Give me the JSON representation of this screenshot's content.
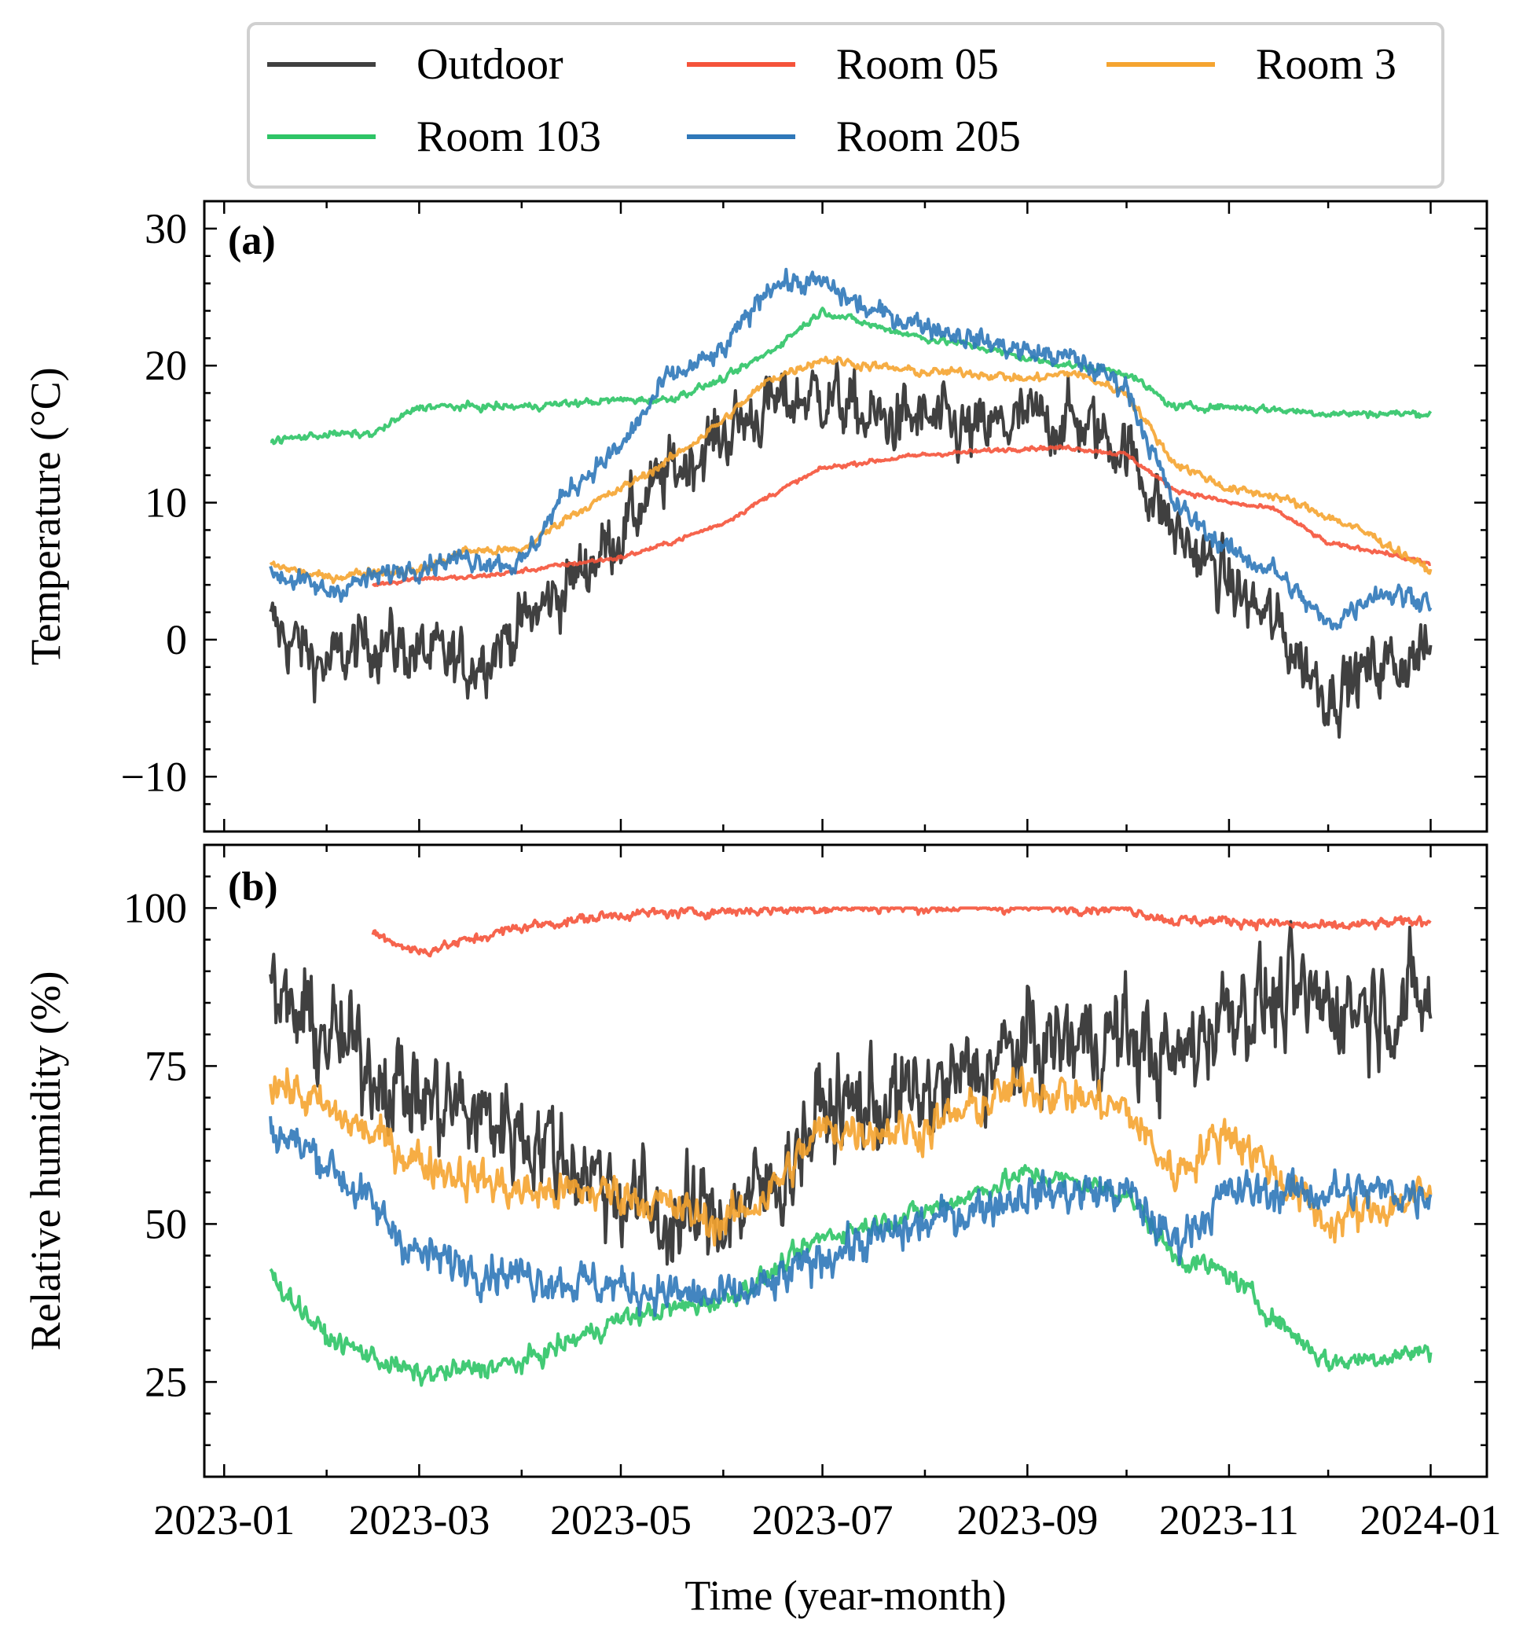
{
  "chart_data": {
    "type": "line",
    "xlabel": "Time (year-month)",
    "x_ticks": [
      "2023-01",
      "2023-03",
      "2023-05",
      "2023-07",
      "2023-09",
      "2023-11",
      "2024-01"
    ],
    "xlim": [
      "2022-12-26",
      "2024-01-18"
    ],
    "legend": {
      "placement": "top-center",
      "columns": 3,
      "entries": [
        {
          "name": "Outdoor",
          "color": "#404040"
        },
        {
          "name": "Room 05",
          "color": "#f5533a"
        },
        {
          "name": "Room 3",
          "color": "#f5a430"
        },
        {
          "name": "Room 103",
          "color": "#2ec466"
        },
        {
          "name": "Room 205",
          "color": "#2f78b9"
        }
      ]
    },
    "panels": [
      {
        "label": "(a)",
        "ylabel": "Temperature (°C)",
        "ylim": [
          -14,
          32
        ],
        "y_ticks": [
          -10,
          0,
          10,
          20,
          30
        ],
        "y_tick_labels": [
          "−10",
          "0",
          "10",
          "20",
          "30"
        ],
        "series": [
          {
            "name": "Outdoor",
            "color": "#404040",
            "noise": 4.5,
            "x": [
              "2023-01-15",
              "2023-02-01",
              "2023-02-15",
              "2023-03-01",
              "2023-03-15",
              "2023-04-01",
              "2023-04-15",
              "2023-05-01",
              "2023-05-15",
              "2023-06-01",
              "2023-06-15",
              "2023-07-01",
              "2023-07-15",
              "2023-08-01",
              "2023-08-15",
              "2023-09-01",
              "2023-09-15",
              "2023-10-01",
              "2023-10-15",
              "2023-11-01",
              "2023-11-15",
              "2023-12-01",
              "2023-12-15",
              "2024-01-01"
            ],
            "y": [
              1,
              -2,
              0,
              -1,
              -2,
              1,
              4,
              8,
              12,
              15,
              17,
              18,
              16,
              16,
              15,
              16,
              16,
              14,
              8,
              4,
              1,
              -4,
              -2,
              -1
            ]
          },
          {
            "name": "Room 05",
            "color": "#f5533a",
            "noise": 0.3,
            "x": [
              "2023-02-15",
              "2023-03-01",
              "2023-03-15",
              "2023-04-01",
              "2023-04-15",
              "2023-05-01",
              "2023-05-15",
              "2023-06-01",
              "2023-06-15",
              "2023-07-01",
              "2023-07-15",
              "2023-08-01",
              "2023-08-15",
              "2023-09-01",
              "2023-09-15",
              "2023-10-01",
              "2023-10-15",
              "2023-11-01",
              "2023-11-15",
              "2023-12-01",
              "2023-12-15",
              "2024-01-01"
            ],
            "y": [
              4,
              4.5,
              4.5,
              5,
              5.5,
              6,
              7,
              8.5,
              10.5,
              12.5,
              13,
              13.5,
              13.7,
              14,
              14,
              13.5,
              11,
              10,
              9.5,
              7,
              6.5,
              5.5
            ]
          },
          {
            "name": "Room 3",
            "color": "#f5a430",
            "noise": 0.6,
            "x": [
              "2023-01-15",
              "2023-02-01",
              "2023-02-15",
              "2023-03-01",
              "2023-03-15",
              "2023-04-01",
              "2023-04-15",
              "2023-05-01",
              "2023-05-15",
              "2023-06-01",
              "2023-06-15",
              "2023-07-01",
              "2023-07-15",
              "2023-08-01",
              "2023-08-15",
              "2023-09-01",
              "2023-09-15",
              "2023-10-01",
              "2023-10-15",
              "2023-11-01",
              "2023-11-15",
              "2023-12-01",
              "2023-12-15",
              "2024-01-01"
            ],
            "y": [
              5.5,
              4.5,
              5,
              5,
              6.5,
              6.5,
              9,
              11,
              13,
              16,
              19,
              20.5,
              20,
              19.5,
              19.5,
              19,
              19.5,
              18,
              13,
              11,
              10.5,
              9,
              7.5,
              5
            ]
          },
          {
            "name": "Room 103",
            "color": "#2ec466",
            "noise": 0.5,
            "x": [
              "2023-01-15",
              "2023-02-01",
              "2023-02-15",
              "2023-03-01",
              "2023-04-01",
              "2023-05-01",
              "2023-05-15",
              "2023-06-01",
              "2023-06-15",
              "2023-07-01",
              "2023-07-15",
              "2023-08-01",
              "2023-08-15",
              "2023-09-01",
              "2023-09-15",
              "2023-10-01",
              "2023-10-15",
              "2023-11-01",
              "2023-11-15",
              "2023-12-01",
              "2023-12-15",
              "2024-01-01"
            ],
            "y": [
              14.5,
              15,
              15,
              17,
              17,
              17.5,
              17.5,
              19,
              21,
              24,
              23,
              22,
              21.5,
              20.5,
              20,
              19.5,
              17,
              17,
              16.8,
              16.5,
              16.5,
              16.5
            ]
          },
          {
            "name": "Room 205",
            "color": "#2f78b9",
            "noise": 1.5,
            "x": [
              "2023-01-15",
              "2023-02-01",
              "2023-02-15",
              "2023-03-01",
              "2023-03-15",
              "2023-04-01",
              "2023-04-15",
              "2023-05-01",
              "2023-05-15",
              "2023-06-01",
              "2023-06-15",
              "2023-07-01",
              "2023-07-15",
              "2023-08-01",
              "2023-08-15",
              "2023-09-01",
              "2023-09-15",
              "2023-10-01",
              "2023-10-15",
              "2023-11-01",
              "2023-11-15",
              "2023-12-01",
              "2023-12-15",
              "2024-01-01"
            ],
            "y": [
              5,
              3.5,
              4.5,
              5.5,
              6,
              5.5,
              11,
              14,
              19,
              21,
              26,
              26,
              24,
              23,
              22,
              21,
              20.5,
              18.5,
              10,
              6.5,
              5,
              1,
              3.5,
              3
            ]
          }
        ]
      },
      {
        "label": "(b)",
        "ylabel": "Relative humidity (%)",
        "ylim": [
          10,
          110
        ],
        "y_ticks": [
          25,
          50,
          75,
          100
        ],
        "y_tick_labels": [
          "25",
          "50",
          "75",
          "100"
        ],
        "series": [
          {
            "name": "Outdoor",
            "color": "#404040",
            "noise": 15,
            "x": [
              "2023-01-15",
              "2023-02-01",
              "2023-03-01",
              "2023-04-01",
              "2023-05-01",
              "2023-05-15",
              "2023-06-01",
              "2023-06-15",
              "2023-07-01",
              "2023-08-01",
              "2023-09-01",
              "2023-10-01",
              "2023-10-15",
              "2023-11-01",
              "2023-12-01",
              "2024-01-01"
            ],
            "y": [
              85,
              80,
              70,
              65,
              55,
              50,
              52,
              55,
              68,
              70,
              78,
              80,
              75,
              85,
              85,
              85
            ]
          },
          {
            "name": "Room 05",
            "color": "#f5533a",
            "noise": 1.5,
            "x": [
              "2023-02-15",
              "2023-03-01",
              "2023-04-01",
              "2023-05-01",
              "2023-06-01",
              "2023-07-01",
              "2023-08-01",
              "2023-09-01",
              "2023-10-01",
              "2023-10-15",
              "2023-11-01",
              "2023-12-01",
              "2024-01-01"
            ],
            "y": [
              96,
              93,
              97,
              99,
              99.5,
              100,
              100,
              100,
              100,
              98,
              98,
              97,
              98
            ]
          },
          {
            "name": "Room 3",
            "color": "#f5a430",
            "noise": 6,
            "x": [
              "2023-01-15",
              "2023-02-01",
              "2023-03-01",
              "2023-04-01",
              "2023-05-01",
              "2023-06-01",
              "2023-06-15",
              "2023-07-01",
              "2023-08-01",
              "2023-09-01",
              "2023-10-01",
              "2023-10-15",
              "2023-11-01",
              "2023-12-01",
              "2024-01-01"
            ],
            "y": [
              73,
              68,
              60,
              55,
              55,
              50,
              55,
              65,
              65,
              72,
              68,
              58,
              65,
              50,
              55
            ]
          },
          {
            "name": "Room 103",
            "color": "#2ec466",
            "noise": 3,
            "x": [
              "2023-01-15",
              "2023-02-01",
              "2023-03-01",
              "2023-04-01",
              "2023-05-01",
              "2023-06-01",
              "2023-06-15",
              "2023-07-01",
              "2023-08-01",
              "2023-09-01",
              "2023-10-01",
              "2023-10-15",
              "2023-11-01",
              "2023-11-15",
              "2023-12-01",
              "2024-01-01"
            ],
            "y": [
              42,
              32,
              26,
              28,
              35,
              38,
              42,
              48,
              52,
              58,
              55,
              45,
              42,
              35,
              28,
              30
            ]
          },
          {
            "name": "Room 205",
            "color": "#2f78b9",
            "noise": 6,
            "x": [
              "2023-01-15",
              "2023-02-01",
              "2023-03-01",
              "2023-04-01",
              "2023-05-01",
              "2023-06-01",
              "2023-06-15",
              "2023-07-01",
              "2023-08-01",
              "2023-09-01",
              "2023-10-01",
              "2023-10-15",
              "2023-11-01",
              "2023-12-01",
              "2024-01-01"
            ],
            "y": [
              65,
              60,
              45,
              42,
              40,
              38,
              40,
              45,
              50,
              55,
              55,
              47,
              55,
              55,
              55
            ]
          }
        ]
      }
    ]
  }
}
